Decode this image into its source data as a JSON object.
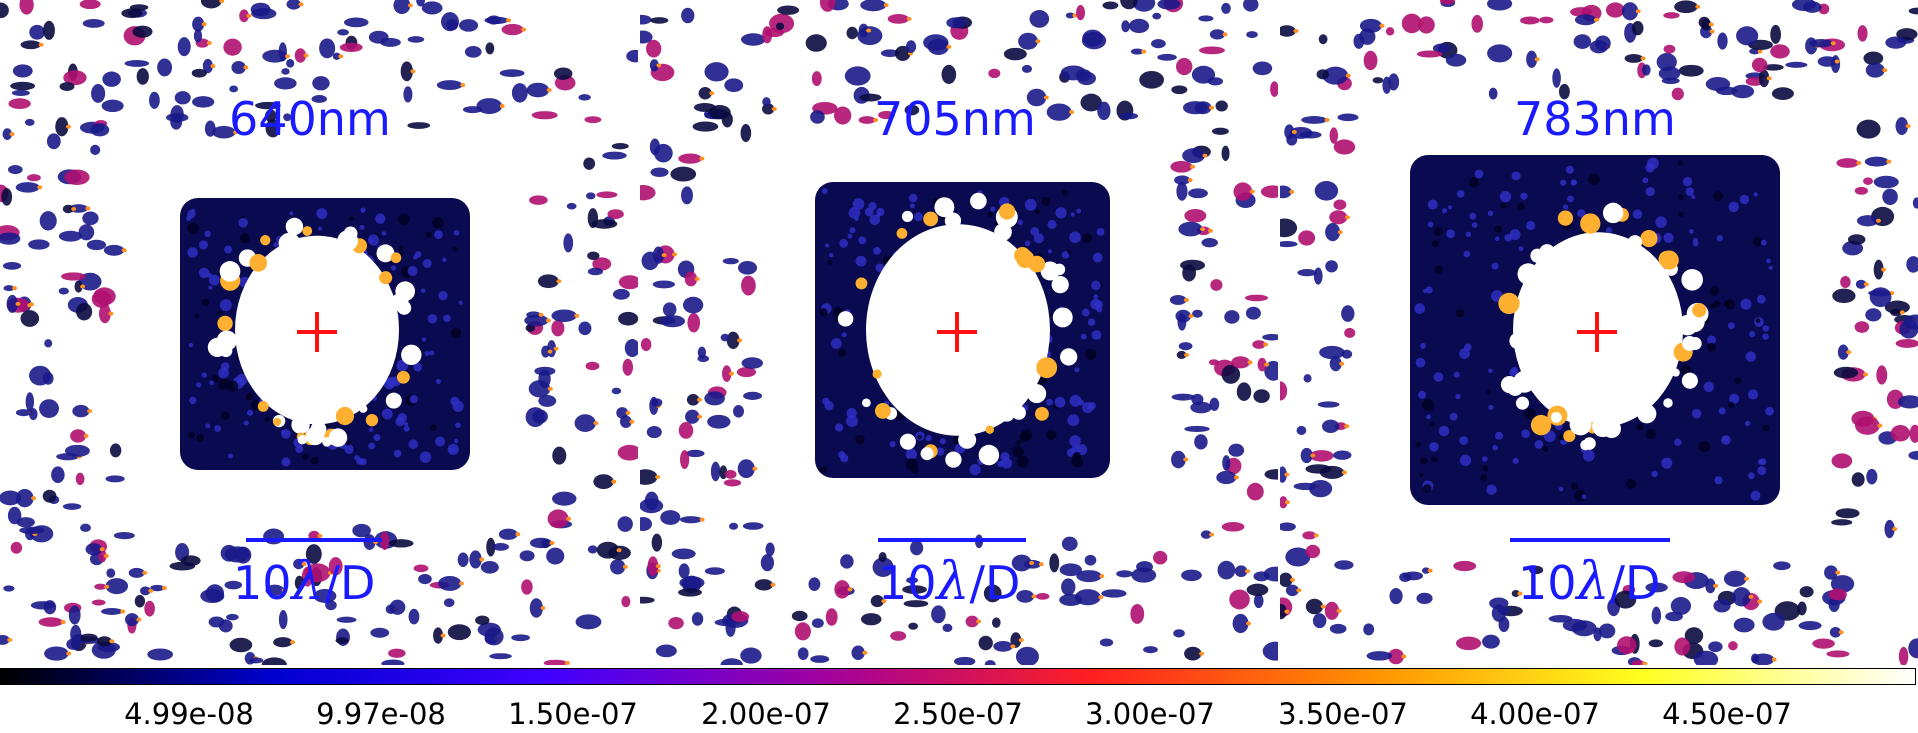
{
  "panels": [
    {
      "wavelength": "640nm",
      "scale_number": "10",
      "scale_lambda": "λ",
      "scale_unit": "/D"
    },
    {
      "wavelength": "705nm",
      "scale_number": "10",
      "scale_lambda": "λ",
      "scale_unit": "/D"
    },
    {
      "wavelength": "783nm",
      "scale_number": "10",
      "scale_lambda": "λ",
      "scale_unit": "/D"
    }
  ],
  "colorbar": {
    "colormap": "gnuplot2",
    "stops": [
      "#000000",
      "#0000d0",
      "#4000ff",
      "#a000a0",
      "#ff2020",
      "#ff9000",
      "#ffff20",
      "#ffffff"
    ],
    "tick_labels": [
      "4.99e-08",
      "9.97e-08",
      "1.50e-07",
      "2.00e-07",
      "2.50e-07",
      "3.00e-07",
      "3.50e-07",
      "4.00e-07",
      "4.50e-07"
    ]
  },
  "colors": {
    "label_blue": "#1a1aff",
    "center_marker_red": "#ff1010",
    "dark_hole": "#0a0a50",
    "speckle_white": "#ffffff"
  }
}
